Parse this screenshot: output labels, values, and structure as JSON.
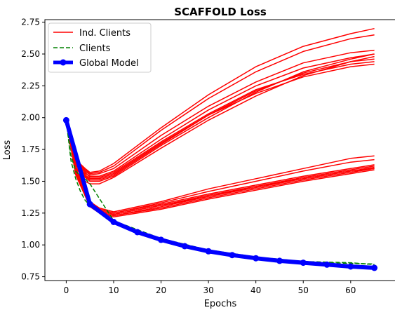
{
  "chart_data": {
    "type": "line",
    "title": "SCAFFOLD Loss",
    "xlabel": "Epochs",
    "ylabel": "Loss",
    "xlim": [
      -4.5,
      69.5
    ],
    "ylim": [
      0.72,
      2.77
    ],
    "xticks": [
      0,
      10,
      20,
      30,
      40,
      50,
      60
    ],
    "yticks": [
      0.75,
      1.0,
      1.25,
      1.5,
      1.75,
      2.0,
      2.25,
      2.5,
      2.75
    ],
    "legend_position": "top-left",
    "legend": [
      {
        "label": "Ind. Clients",
        "style": "solid",
        "color": "#ff0000"
      },
      {
        "label": "Clients",
        "style": "dashed",
        "color": "#008000"
      },
      {
        "label": "Global Model",
        "style": "solid-markers",
        "color": "#0000ff"
      }
    ],
    "colors": {
      "ind_clients": "#ff0000",
      "clients": "#008000",
      "global": "#0000ff"
    },
    "global_model": {
      "x": [
        0,
        5,
        10,
        15,
        20,
        25,
        30,
        35,
        40,
        45,
        50,
        55,
        60,
        65
      ],
      "y": [
        1.98,
        1.32,
        1.18,
        1.1,
        1.04,
        0.99,
        0.95,
        0.92,
        0.895,
        0.875,
        0.86,
        0.845,
        0.83,
        0.82
      ]
    },
    "ind_clients_high": {
      "x": [
        0,
        2,
        4,
        5,
        7,
        10,
        20,
        30,
        40,
        50,
        60,
        65
      ],
      "series": [
        [
          1.98,
          1.58,
          1.5,
          1.48,
          1.48,
          1.53,
          1.76,
          1.98,
          2.17,
          2.33,
          2.44,
          2.48
        ],
        [
          1.96,
          1.6,
          1.53,
          1.5,
          1.5,
          1.54,
          1.78,
          2.0,
          2.2,
          2.36,
          2.46,
          2.5
        ],
        [
          1.97,
          1.61,
          1.54,
          1.51,
          1.51,
          1.55,
          1.79,
          2.02,
          2.21,
          2.35,
          2.44,
          2.46
        ],
        [
          1.98,
          1.63,
          1.55,
          1.52,
          1.52,
          1.56,
          1.8,
          2.02,
          2.19,
          2.32,
          2.4,
          2.42
        ],
        [
          1.97,
          1.64,
          1.57,
          1.53,
          1.53,
          1.57,
          1.81,
          2.03,
          2.22,
          2.34,
          2.42,
          2.44
        ],
        [
          1.98,
          1.62,
          1.56,
          1.54,
          1.54,
          1.58,
          1.83,
          2.06,
          2.25,
          2.39,
          2.47,
          2.5
        ],
        [
          1.98,
          1.65,
          1.58,
          1.55,
          1.56,
          1.6,
          1.86,
          2.09,
          2.28,
          2.43,
          2.51,
          2.53
        ],
        [
          1.97,
          1.66,
          1.59,
          1.56,
          1.57,
          1.62,
          1.9,
          2.15,
          2.36,
          2.52,
          2.62,
          2.65
        ],
        [
          1.98,
          1.67,
          1.6,
          1.57,
          1.58,
          1.64,
          1.92,
          2.18,
          2.4,
          2.56,
          2.66,
          2.7
        ]
      ]
    },
    "ind_clients_low": {
      "x": [
        0,
        2,
        5,
        7,
        10,
        20,
        30,
        40,
        50,
        60,
        65
      ],
      "series": [
        [
          1.98,
          1.55,
          1.3,
          1.25,
          1.22,
          1.28,
          1.36,
          1.43,
          1.5,
          1.56,
          1.59
        ],
        [
          1.97,
          1.56,
          1.31,
          1.26,
          1.23,
          1.29,
          1.37,
          1.44,
          1.51,
          1.57,
          1.6
        ],
        [
          1.98,
          1.57,
          1.31,
          1.26,
          1.23,
          1.3,
          1.38,
          1.45,
          1.52,
          1.58,
          1.61
        ],
        [
          1.96,
          1.58,
          1.32,
          1.27,
          1.24,
          1.31,
          1.38,
          1.46,
          1.52,
          1.58,
          1.6
        ],
        [
          1.97,
          1.58,
          1.32,
          1.27,
          1.24,
          1.31,
          1.39,
          1.46,
          1.53,
          1.59,
          1.62
        ],
        [
          1.98,
          1.59,
          1.33,
          1.28,
          1.25,
          1.32,
          1.4,
          1.47,
          1.54,
          1.6,
          1.63
        ],
        [
          1.97,
          1.6,
          1.33,
          1.28,
          1.25,
          1.33,
          1.42,
          1.5,
          1.58,
          1.65,
          1.67
        ],
        [
          1.98,
          1.61,
          1.34,
          1.29,
          1.26,
          1.34,
          1.44,
          1.52,
          1.6,
          1.68,
          1.7
        ]
      ]
    },
    "clients": {
      "x": [
        0,
        1,
        2,
        3,
        4,
        5,
        10,
        20,
        30,
        40,
        50,
        60,
        65
      ],
      "series": [
        [
          1.98,
          1.66,
          1.52,
          1.42,
          1.35,
          1.31,
          1.17,
          1.04,
          0.955,
          0.9,
          0.865,
          0.855,
          0.85
        ],
        [
          1.97,
          1.7,
          1.58,
          1.54,
          1.52,
          1.48,
          1.19,
          1.05,
          0.96,
          0.905,
          0.87,
          0.86,
          0.845
        ]
      ]
    }
  }
}
